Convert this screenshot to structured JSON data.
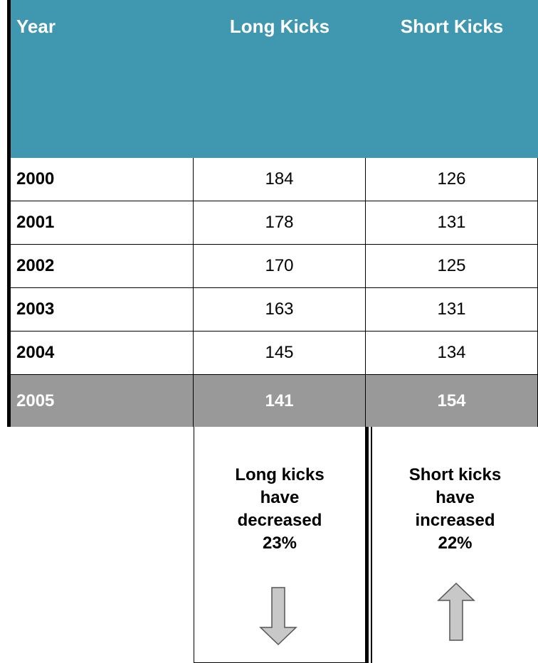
{
  "table": {
    "columns": [
      "Year",
      "Long Kicks",
      "Short Kicks"
    ],
    "rows": [
      [
        "2000",
        184,
        126
      ],
      [
        "2001",
        178,
        131
      ],
      [
        "2002",
        170,
        125
      ],
      [
        "2003",
        163,
        131
      ],
      [
        "2004",
        145,
        134
      ],
      [
        "2005",
        141,
        154
      ]
    ]
  },
  "notes": [
    {
      "lines": [
        "Long kicks",
        "have",
        "decreased",
        "23%"
      ]
    },
    {
      "lines": [
        "Short kicks",
        "have",
        "increased",
        "22%"
      ]
    }
  ]
}
